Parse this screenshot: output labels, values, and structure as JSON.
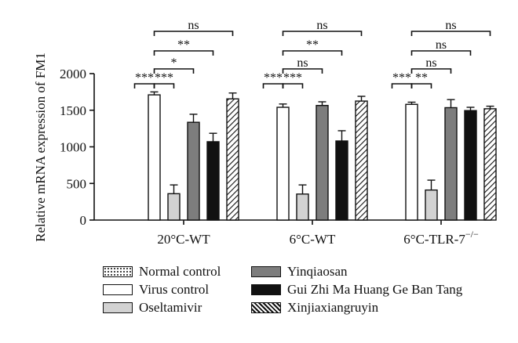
{
  "chart_data": {
    "type": "bar",
    "ylabel": "Relative mRNA expression of FM1",
    "ylim": [
      0,
      2000
    ],
    "yticks": [
      0,
      500,
      1000,
      1500,
      2000
    ],
    "groups": [
      "20°C-WT",
      "6°C-WT",
      "6°C-TLR-7"
    ],
    "group_sup": [
      "",
      "",
      "−/−"
    ],
    "series": [
      {
        "name": "Normal control",
        "fill": "dots",
        "values": [
          0,
          0,
          0
        ],
        "errors": [
          0,
          0,
          0
        ]
      },
      {
        "name": "Virus control",
        "fill": "white",
        "values": [
          1710,
          1540,
          1580
        ],
        "errors": [
          40,
          45,
          30
        ]
      },
      {
        "name": "Oseltamivir",
        "fill": "light-gray",
        "values": [
          360,
          355,
          410
        ],
        "errors": [
          120,
          125,
          135
        ]
      },
      {
        "name": "Yinqiaosan",
        "fill": "dark-gray",
        "values": [
          1335,
          1565,
          1535
        ],
        "errors": [
          110,
          50,
          110
        ]
      },
      {
        "name": "Gui Zhi Ma Huang Ge Ban Tang",
        "fill": "black",
        "values": [
          1070,
          1080,
          1495
        ],
        "errors": [
          115,
          140,
          45
        ]
      },
      {
        "name": "Xinjiaxiangruyin",
        "fill": "hatched",
        "values": [
          1655,
          1625,
          1520
        ],
        "errors": [
          80,
          65,
          35
        ]
      }
    ],
    "significance": [
      {
        "group": 0,
        "from": 0,
        "to": 1,
        "level": 1,
        "label": "***"
      },
      {
        "group": 0,
        "from": 1,
        "to": 2,
        "level": 1,
        "label": "***"
      },
      {
        "group": 0,
        "from": 1,
        "to": 3,
        "level": 2,
        "label": "*"
      },
      {
        "group": 0,
        "from": 1,
        "to": 4,
        "level": 3,
        "label": "**"
      },
      {
        "group": 0,
        "from": 1,
        "to": 5,
        "level": 4,
        "label": "ns"
      },
      {
        "group": 1,
        "from": 0,
        "to": 1,
        "level": 1,
        "label": "***"
      },
      {
        "group": 1,
        "from": 1,
        "to": 2,
        "level": 1,
        "label": "***"
      },
      {
        "group": 1,
        "from": 1,
        "to": 3,
        "level": 2,
        "label": "ns"
      },
      {
        "group": 1,
        "from": 1,
        "to": 4,
        "level": 3,
        "label": "**"
      },
      {
        "group": 1,
        "from": 1,
        "to": 5,
        "level": 4,
        "label": "ns"
      },
      {
        "group": 2,
        "from": 0,
        "to": 1,
        "level": 1,
        "label": "***"
      },
      {
        "group": 2,
        "from": 1,
        "to": 2,
        "level": 1,
        "label": "**"
      },
      {
        "group": 2,
        "from": 1,
        "to": 3,
        "level": 2,
        "label": "ns"
      },
      {
        "group": 2,
        "from": 1,
        "to": 4,
        "level": 3,
        "label": "ns"
      },
      {
        "group": 2,
        "from": 1,
        "to": 5,
        "level": 4,
        "label": "ns"
      }
    ],
    "legend_position": "bottom"
  }
}
